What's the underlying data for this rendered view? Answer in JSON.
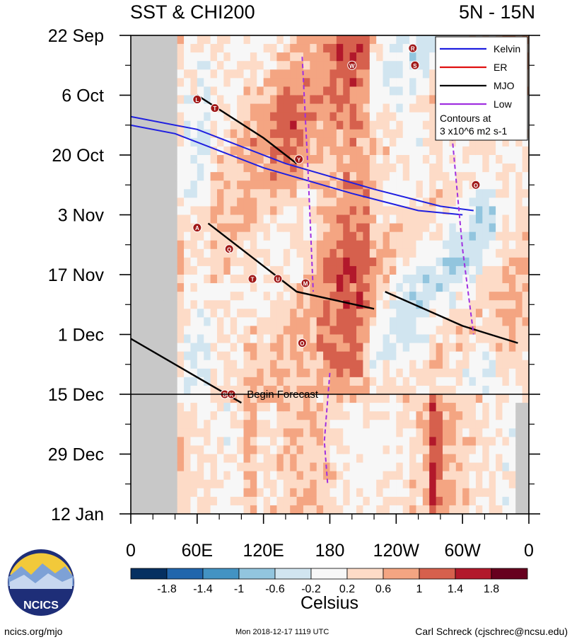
{
  "header": {
    "title_left": "SST & CHI200",
    "title_right": "5N - 15N"
  },
  "chart_data": {
    "type": "heatmap",
    "title": "SST & CHI200",
    "subtitle": "5N - 15N",
    "xaxis": {
      "label": "",
      "ticks": [
        {
          "lon": 0,
          "label": "0"
        },
        {
          "lon": 60,
          "label": "60E"
        },
        {
          "lon": 120,
          "label": "120E"
        },
        {
          "lon": 180,
          "label": "180"
        },
        {
          "lon": 240,
          "label": "120W"
        },
        {
          "lon": 300,
          "label": "60W"
        },
        {
          "lon": 360,
          "label": "0"
        }
      ],
      "range": [
        0,
        360
      ]
    },
    "yaxis": {
      "label": "",
      "ticks": [
        {
          "day": 0,
          "label": "22 Sep"
        },
        {
          "day": 14,
          "label": "6 Oct"
        },
        {
          "day": 28,
          "label": "20 Oct"
        },
        {
          "day": 42,
          "label": "3 Nov"
        },
        {
          "day": 56,
          "label": "17 Nov"
        },
        {
          "day": 70,
          "label": "1 Dec"
        },
        {
          "day": 84,
          "label": "15 Dec"
        },
        {
          "day": 98,
          "label": "29 Dec"
        },
        {
          "day": 112,
          "label": "12 Jan"
        }
      ],
      "range": [
        0,
        112
      ],
      "reversed": true
    },
    "forecast_line": {
      "day": 84,
      "label": "Begin Forecast"
    },
    "colorbar": {
      "label": "Celsius",
      "levels": [
        -2.2,
        -1.8,
        -1.4,
        -1,
        -0.6,
        -0.2,
        0.2,
        0.6,
        1,
        1.4,
        1.8,
        2.2
      ],
      "tick_labels": [
        "-1.8",
        "-1.4",
        "-1",
        "-0.6",
        "-0.2",
        "0.2",
        "0.6",
        "1",
        "1.4",
        "1.8"
      ],
      "colors": [
        "#053061",
        "#2166ac",
        "#4393c3",
        "#92c5de",
        "#d1e5f0",
        "#f7f7f7",
        "#fddbc7",
        "#f4a582",
        "#d6604d",
        "#b2182b",
        "#67001f"
      ]
    },
    "legend": {
      "position": "top-right",
      "entries": [
        {
          "name": "Kelvin",
          "color": "#1f1fe0"
        },
        {
          "name": "ER",
          "color": "#e01010"
        },
        {
          "name": "MJO",
          "color": "#000000"
        },
        {
          "name": "Low",
          "color": "#a030e0"
        }
      ],
      "note_line1": "Contours at",
      "note_line2": "3 x10^6 m2 s-1"
    },
    "series": [
      {
        "name": "Kelvin",
        "path": [
          [
            0,
            21
          ],
          [
            40,
            23
          ],
          [
            120,
            31
          ],
          [
            200,
            37
          ],
          [
            260,
            41
          ],
          [
            300,
            42
          ]
        ]
      },
      {
        "name": "Kelvin",
        "path": [
          [
            0,
            19
          ],
          [
            60,
            22
          ],
          [
            140,
            30
          ],
          [
            220,
            36
          ],
          [
            280,
            40
          ],
          [
            310,
            41
          ]
        ]
      },
      {
        "name": "MJO",
        "path": [
          [
            60,
            14
          ],
          [
            120,
            24
          ],
          [
            150,
            30
          ]
        ]
      },
      {
        "name": "MJO",
        "path": [
          [
            70,
            44
          ],
          [
            150,
            60
          ],
          [
            220,
            64
          ]
        ]
      },
      {
        "name": "MJO",
        "path": [
          [
            0,
            71
          ],
          [
            60,
            80
          ],
          [
            100,
            86
          ]
        ]
      },
      {
        "name": "MJO",
        "path": [
          [
            230,
            60
          ],
          [
            300,
            68
          ],
          [
            350,
            72
          ]
        ]
      },
      {
        "name": "Low",
        "path": [
          [
            155,
            5
          ],
          [
            160,
            30
          ],
          [
            165,
            60
          ]
        ]
      },
      {
        "name": "Low",
        "path": [
          [
            290,
            22
          ],
          [
            300,
            50
          ],
          [
            310,
            70
          ]
        ]
      },
      {
        "name": "Low",
        "path": [
          [
            180,
            79
          ],
          [
            175,
            95
          ],
          [
            178,
            105
          ]
        ]
      }
    ],
    "storms": [
      {
        "label": "R",
        "lon": 255,
        "day": 3
      },
      {
        "label": "W",
        "lon": 200,
        "day": 7
      },
      {
        "label": "S",
        "lon": 257,
        "day": 7
      },
      {
        "label": "L",
        "lon": 60,
        "day": 15
      },
      {
        "label": "T",
        "lon": 76,
        "day": 17
      },
      {
        "label": "Y",
        "lon": 152,
        "day": 29
      },
      {
        "label": "O",
        "lon": 312,
        "day": 35
      },
      {
        "label": "A",
        "lon": 60,
        "day": 45
      },
      {
        "label": "Q",
        "lon": 89,
        "day": 50
      },
      {
        "label": "T",
        "lon": 110,
        "day": 57
      },
      {
        "label": "U",
        "lon": 133,
        "day": 57
      },
      {
        "label": "M",
        "lon": 158,
        "day": 58
      },
      {
        "label": "O",
        "lon": 155,
        "day": 72
      },
      {
        "label": "B",
        "lon": 85,
        "day": 84
      },
      {
        "label": "K",
        "lon": 91,
        "day": 84
      }
    ]
  },
  "footer": {
    "logo_text": "NCICS",
    "url": "ncics.org/mjo",
    "timestamp": "Mon 2018-12-17 1119 UTC",
    "author": "Carl Schreck (cjschrec@ncsu.edu)"
  }
}
